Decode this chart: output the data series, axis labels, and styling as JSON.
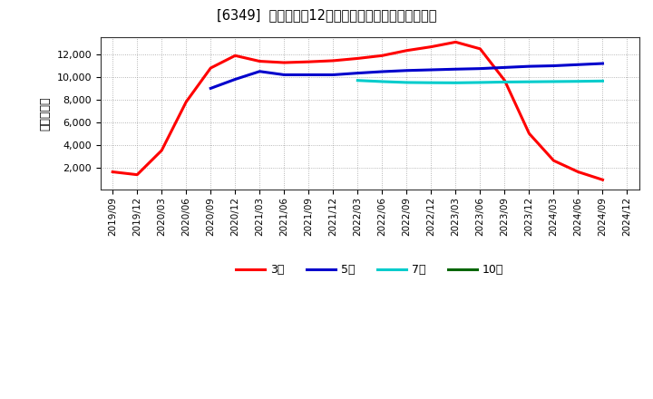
{
  "title": "[6349]  当期純利益12か月移動合計の標準偏差の推移",
  "ylabel": "（百万円）",
  "background_color": "#ffffff",
  "plot_bg_color": "#ffffff",
  "grid_color": "#999999",
  "ylim": [
    0,
    13500
  ],
  "yticks": [
    2000,
    4000,
    6000,
    8000,
    10000,
    12000
  ],
  "x_labels": [
    "2019/09",
    "2019/12",
    "2020/03",
    "2020/06",
    "2020/09",
    "2020/12",
    "2021/03",
    "2021/06",
    "2021/09",
    "2021/12",
    "2022/03",
    "2022/06",
    "2022/09",
    "2022/12",
    "2023/03",
    "2023/06",
    "2023/09",
    "2023/12",
    "2024/03",
    "2024/06",
    "2024/09",
    "2024/12"
  ],
  "series": {
    "3year": {
      "color": "#ff0000",
      "label": "3年",
      "data": [
        [
          "2019/09",
          1600
        ],
        [
          "2019/12",
          1350
        ],
        [
          "2020/03",
          3500
        ],
        [
          "2020/06",
          7800
        ],
        [
          "2020/09",
          10800
        ],
        [
          "2020/12",
          11900
        ],
        [
          "2021/03",
          11400
        ],
        [
          "2021/06",
          11280
        ],
        [
          "2021/09",
          11350
        ],
        [
          "2021/12",
          11450
        ],
        [
          "2022/03",
          11650
        ],
        [
          "2022/06",
          11900
        ],
        [
          "2022/09",
          12350
        ],
        [
          "2022/12",
          12680
        ],
        [
          "2023/03",
          13100
        ],
        [
          "2023/06",
          12500
        ],
        [
          "2023/09",
          9700
        ],
        [
          "2023/12",
          5000
        ],
        [
          "2024/03",
          2600
        ],
        [
          "2024/06",
          1600
        ],
        [
          "2024/09",
          900
        ]
      ]
    },
    "5year": {
      "color": "#0000cc",
      "label": "5年",
      "data": [
        [
          "2020/09",
          9000
        ],
        [
          "2020/12",
          9800
        ],
        [
          "2021/03",
          10500
        ],
        [
          "2021/06",
          10200
        ],
        [
          "2021/09",
          10200
        ],
        [
          "2021/12",
          10200
        ],
        [
          "2022/03",
          10350
        ],
        [
          "2022/06",
          10480
        ],
        [
          "2022/09",
          10580
        ],
        [
          "2022/12",
          10640
        ],
        [
          "2023/03",
          10700
        ],
        [
          "2023/06",
          10750
        ],
        [
          "2023/09",
          10850
        ],
        [
          "2023/12",
          10950
        ],
        [
          "2024/03",
          11000
        ],
        [
          "2024/06",
          11100
        ],
        [
          "2024/09",
          11200
        ]
      ]
    },
    "7year": {
      "color": "#00cccc",
      "label": "7年",
      "data": [
        [
          "2022/03",
          9700
        ],
        [
          "2022/06",
          9600
        ],
        [
          "2022/09",
          9520
        ],
        [
          "2022/12",
          9500
        ],
        [
          "2023/03",
          9490
        ],
        [
          "2023/06",
          9520
        ],
        [
          "2023/09",
          9560
        ],
        [
          "2023/12",
          9580
        ],
        [
          "2024/03",
          9600
        ],
        [
          "2024/06",
          9620
        ],
        [
          "2024/09",
          9650
        ]
      ]
    },
    "10year": {
      "color": "#006600",
      "label": "10年",
      "data": []
    }
  }
}
